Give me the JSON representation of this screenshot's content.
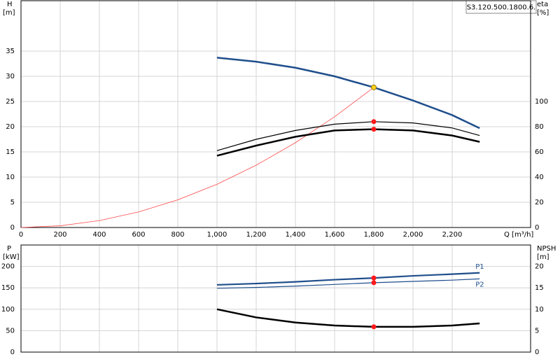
{
  "chart_data": [
    {
      "type": "line",
      "model": "S3.120.500.1800.6.",
      "y_label": "H",
      "y_unit": "[m]",
      "y2_label": "eta",
      "y2_unit": "[%]",
      "x_label": "Q [m³/h]",
      "xlim": [
        0,
        2600
      ],
      "xticks": [
        0,
        200,
        400,
        600,
        800,
        {
          "value": 1000,
          "label": "1,000"
        },
        {
          "value": 1200,
          "label": "1,200"
        },
        {
          "value": 1400,
          "label": "1,400"
        },
        {
          "value": 1600,
          "label": "1,600"
        },
        {
          "value": 1800,
          "label": "1,800"
        },
        {
          "value": 2000,
          "label": "2,000"
        },
        {
          "value": 2200,
          "label": "2,200"
        }
      ],
      "ylim": [
        0,
        45
      ],
      "yticks": [
        0,
        5,
        10,
        15,
        20,
        25,
        30,
        35
      ],
      "y2lim": [
        0,
        180
      ],
      "y2ticks": [
        0,
        20,
        40,
        60,
        80,
        100
      ],
      "series": [
        {
          "color": "#ff4a4a",
          "width": 0.8,
          "axis": "y",
          "x": [
            0,
            200,
            400,
            600,
            800,
            1000,
            1200,
            1400,
            1600,
            1800
          ],
          "values": [
            0,
            0.34,
            1.37,
            3.09,
            5.49,
            8.58,
            12.36,
            16.82,
            21.97,
            27.8
          ]
        },
        {
          "color": "#1f4e8c",
          "width": 2.5,
          "axis": "y",
          "x": [
            1000,
            1200,
            1400,
            1600,
            1800,
            2000,
            2200,
            2340
          ],
          "values": [
            33.7,
            32.9,
            31.7,
            30.0,
            27.8,
            25.2,
            22.3,
            19.7
          ]
        },
        {
          "color": "#000000",
          "width": 1.2,
          "axis": "y2",
          "x": [
            1000,
            1200,
            1400,
            1600,
            1800,
            2000,
            2200,
            2340
          ],
          "values": [
            61,
            70,
            77,
            82,
            84,
            83,
            79,
            73
          ]
        },
        {
          "color": "#000000",
          "width": 2.5,
          "axis": "y2",
          "x": [
            1000,
            1200,
            1400,
            1600,
            1800,
            2000,
            2200,
            2340
          ],
          "values": [
            57,
            65,
            72,
            77,
            78,
            77,
            73,
            68
          ]
        }
      ],
      "points": [
        {
          "x": 1800,
          "y": 27.8,
          "axis": "y",
          "color": "#ffd21f"
        },
        {
          "x": 1800,
          "y": 84,
          "axis": "y2",
          "color": "#ff1a1a"
        },
        {
          "x": 1800,
          "y": 78,
          "axis": "y2",
          "color": "#ff1a1a"
        }
      ]
    },
    {
      "type": "line",
      "y_label": "P",
      "y_unit": "[kW]",
      "y2_label": "NPSH",
      "y2_unit": "[m]",
      "xlim": [
        0,
        2600
      ],
      "ylim": [
        0,
        250
      ],
      "yticks": [
        0,
        50,
        100,
        150,
        200
      ],
      "y2lim": [
        0,
        25
      ],
      "y2ticks": [
        0,
        5,
        10,
        15,
        20
      ],
      "series": [
        {
          "name": "P1",
          "color": "#1f4e8c",
          "width": 2.2,
          "axis": "y",
          "x": [
            1000,
            1200,
            1400,
            1600,
            1800,
            2000,
            2200,
            2340
          ],
          "values": [
            157,
            160,
            164,
            169,
            173,
            178,
            182,
            185
          ]
        },
        {
          "name": "P2",
          "color": "#1f4e8c",
          "width": 1.2,
          "axis": "y",
          "x": [
            1000,
            1200,
            1400,
            1600,
            1800,
            2000,
            2200,
            2340
          ],
          "values": [
            149,
            151,
            154,
            158,
            162,
            165,
            168,
            171
          ]
        },
        {
          "color": "#000000",
          "width": 2.5,
          "axis": "y2",
          "x": [
            1000,
            1200,
            1400,
            1600,
            1800,
            2000,
            2200,
            2340
          ],
          "values": [
            10.0,
            8.1,
            6.9,
            6.2,
            5.9,
            5.9,
            6.2,
            6.7
          ]
        }
      ],
      "points": [
        {
          "x": 1800,
          "y": 173,
          "axis": "y",
          "color": "#ff1a1a"
        },
        {
          "x": 1800,
          "y": 162,
          "axis": "y",
          "color": "#ff1a1a"
        },
        {
          "x": 1800,
          "y": 5.9,
          "axis": "y2",
          "color": "#ff1a1a"
        }
      ]
    }
  ]
}
